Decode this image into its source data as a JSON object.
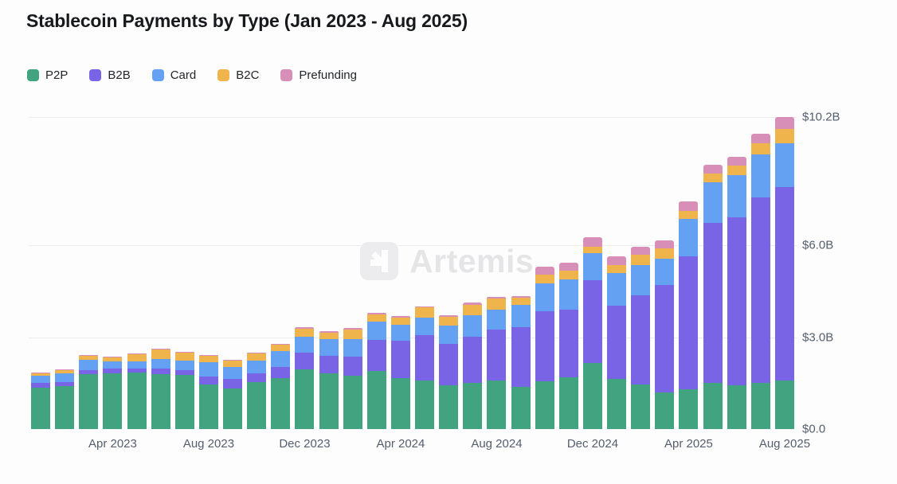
{
  "header": {
    "title": "Stablecoin Payments by Type (Jan 2023 - Aug 2025)"
  },
  "watermark": {
    "text": "Artemis"
  },
  "chart_data": {
    "type": "bar",
    "stacked": true,
    "title": "Stablecoin Payments by Type (Jan 2023 - Aug 2025)",
    "unit": "USD billions",
    "grid": true,
    "legend_position": "top-left",
    "ylim": [
      0,
      10.2
    ],
    "categories": [
      "Jan 2023",
      "Feb 2023",
      "Mar 2023",
      "Apr 2023",
      "May 2023",
      "Jun 2023",
      "Jul 2023",
      "Aug 2023",
      "Sep 2023",
      "Oct 2023",
      "Nov 2023",
      "Dec 2023",
      "Jan 2024",
      "Feb 2024",
      "Mar 2024",
      "Apr 2024",
      "May 2024",
      "Jun 2024",
      "Jul 2024",
      "Aug 2024",
      "Sep 2024",
      "Oct 2024",
      "Nov 2024",
      "Dec 2024",
      "Jan 2025",
      "Feb 2025",
      "Mar 2025",
      "Apr 2025",
      "May 2025",
      "Jun 2025",
      "Jul 2025",
      "Aug 2025"
    ],
    "series": [
      {
        "name": "P2P",
        "color": "#41a380",
        "values": [
          1.36,
          1.41,
          1.8,
          1.83,
          1.85,
          1.8,
          1.77,
          1.46,
          1.33,
          1.54,
          1.67,
          1.96,
          1.83,
          1.75,
          1.9,
          1.67,
          1.59,
          1.43,
          1.51,
          1.59,
          1.38,
          1.55,
          1.68,
          2.15,
          1.64,
          1.46,
          1.2,
          1.3,
          1.51,
          1.43,
          1.51,
          1.6
        ]
      },
      {
        "name": "B2B",
        "color": "#7a64e6",
        "values": [
          0.14,
          0.13,
          0.12,
          0.16,
          0.13,
          0.18,
          0.16,
          0.26,
          0.31,
          0.29,
          0.37,
          0.54,
          0.57,
          0.62,
          1.02,
          1.23,
          1.49,
          1.36,
          1.52,
          1.67,
          1.96,
          2.3,
          2.22,
          2.71,
          2.4,
          2.92,
          3.5,
          4.34,
          5.22,
          5.48,
          6.06,
          6.3
        ]
      },
      {
        "name": "Card",
        "color": "#65a1f2",
        "values": [
          0.25,
          0.29,
          0.34,
          0.23,
          0.23,
          0.31,
          0.31,
          0.47,
          0.39,
          0.42,
          0.5,
          0.53,
          0.55,
          0.58,
          0.6,
          0.52,
          0.57,
          0.6,
          0.7,
          0.65,
          0.73,
          0.92,
          1.0,
          0.88,
          1.05,
          0.97,
          0.86,
          1.22,
          1.33,
          1.39,
          1.4,
          1.45
        ]
      },
      {
        "name": "B2C",
        "color": "#f0b44c",
        "values": [
          0.08,
          0.1,
          0.13,
          0.13,
          0.23,
          0.31,
          0.26,
          0.21,
          0.21,
          0.23,
          0.21,
          0.26,
          0.21,
          0.31,
          0.24,
          0.23,
          0.32,
          0.29,
          0.34,
          0.37,
          0.23,
          0.27,
          0.27,
          0.23,
          0.28,
          0.34,
          0.34,
          0.26,
          0.29,
          0.31,
          0.38,
          0.45
        ]
      },
      {
        "name": "Prefunding",
        "color": "#d78fb8",
        "values": [
          0.02,
          0.02,
          0.02,
          0.02,
          0.02,
          0.02,
          0.02,
          0.02,
          0.02,
          0.02,
          0.03,
          0.05,
          0.04,
          0.04,
          0.04,
          0.05,
          0.05,
          0.05,
          0.08,
          0.05,
          0.05,
          0.26,
          0.26,
          0.29,
          0.27,
          0.26,
          0.26,
          0.32,
          0.29,
          0.29,
          0.3,
          0.4
        ]
      }
    ],
    "x_tick_labels": [
      "Apr 2023",
      "Aug 2023",
      "Dec 2023",
      "Apr 2024",
      "Aug 2024",
      "Dec 2024",
      "Apr 2025",
      "Aug 2025"
    ],
    "x_tick_indices": [
      3,
      7,
      11,
      15,
      19,
      23,
      27,
      31
    ],
    "y_ticks": [
      {
        "value": 0,
        "label": "$0.0"
      },
      {
        "value": 3,
        "label": "$3.0B"
      },
      {
        "value": 6,
        "label": "$6.0B"
      },
      {
        "value": 10.2,
        "label": "$10.2B"
      }
    ]
  }
}
